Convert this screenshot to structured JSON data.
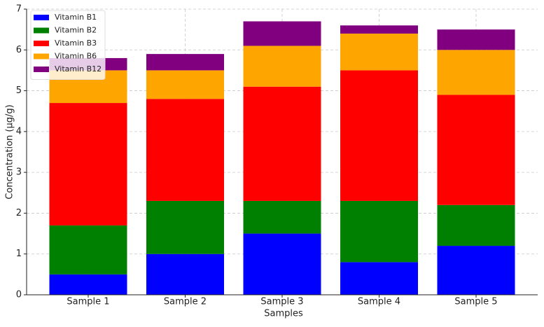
{
  "chart_data": {
    "type": "stacked-bar",
    "x_label": "Samples",
    "y_label": "Concentration (µg/g)",
    "categories": [
      "Sample 1",
      "Sample 2",
      "Sample 3",
      "Sample 4",
      "Sample 5"
    ],
    "series": [
      {
        "name": "Vitamin B1",
        "color": "#0000ff",
        "values": [
          0.5,
          1.0,
          1.5,
          0.8,
          1.2
        ]
      },
      {
        "name": "Vitamin B2",
        "color": "#008000",
        "values": [
          1.2,
          1.3,
          0.8,
          1.5,
          1.0
        ]
      },
      {
        "name": "Vitamin B3",
        "color": "#ff0000",
        "values": [
          3.0,
          2.5,
          2.8,
          3.2,
          2.7
        ]
      },
      {
        "name": "Vitamin B6",
        "color": "#ffa500",
        "values": [
          0.8,
          0.7,
          1.0,
          0.9,
          1.1
        ]
      },
      {
        "name": "Vitamin B12",
        "color": "#800080",
        "values": [
          0.3,
          0.4,
          0.6,
          0.2,
          0.5
        ]
      }
    ],
    "ylim": [
      0,
      7
    ],
    "yticks": [
      0,
      1,
      2,
      3,
      4,
      5,
      6,
      7
    ],
    "grid": true,
    "legend": "upper-left"
  }
}
